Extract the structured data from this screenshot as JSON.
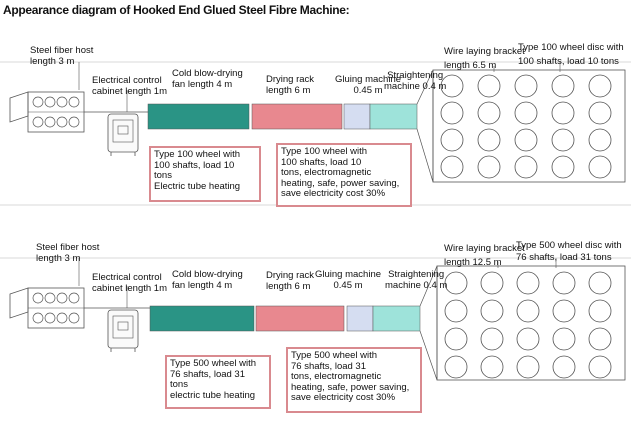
{
  "title": "Appearance diagram of Hooked End Glued Steel Fibre Machine:",
  "colors": {
    "blow_drying_fan": "#2a9485",
    "drying_rack": "#e8888f",
    "gluing_machine": "#d5ddf1",
    "straightening_machine": "#9ee3da",
    "note_border": "#d98a8f",
    "outline": "#555555"
  },
  "panels": [
    {
      "host": "Steel fiber host\nlength 3 m",
      "cabinet": "Electrical control\ncabinet length 1m",
      "fan": "Cold blow-drying\nfan length 4 m",
      "rack": "Drying rack\nlength 6 m",
      "gluing": "Gluing machine\n0.45 m",
      "straightening": "Straightening\nmachine 0.4 m",
      "bracket": "Wire laying bracket\nlength 6.5 m",
      "disc": "Type 100 wheel disc with\n100 shafts, load 10 tons",
      "note_left": "Type 100 wheel with\n100 shafts, load 10\ntons\nElectric tube heating",
      "note_right": "Type 100 wheel with\n100 shafts, load 10\ntons, electromagnetic\nheating, safe, power saving,\nsave electricity cost 30%"
    },
    {
      "host": "Steel fiber host\nlength 3 m",
      "cabinet": "Electrical control\ncabinet length 1m",
      "fan": "Cold blow-drying\nfan length 4 m",
      "rack": "Drying rack\nlength 6 m",
      "gluing": "Gluing machine\n0.45 m",
      "straightening": "Straightening\nmachine 0.4 m",
      "bracket": "Wire laying bracket\nlength 12.5 m",
      "disc": "Type 500 wheel disc with\n76 shafts, load 31 tons",
      "note_left": "Type 500 wheel with\n76 shafts, load 31\ntons\nelectric tube heating",
      "note_right": "Type 500 wheel with\n76 shafts, load 31\ntons, electromagnetic\nheating, safe, power saving,\nsave electricity cost 30%"
    }
  ]
}
